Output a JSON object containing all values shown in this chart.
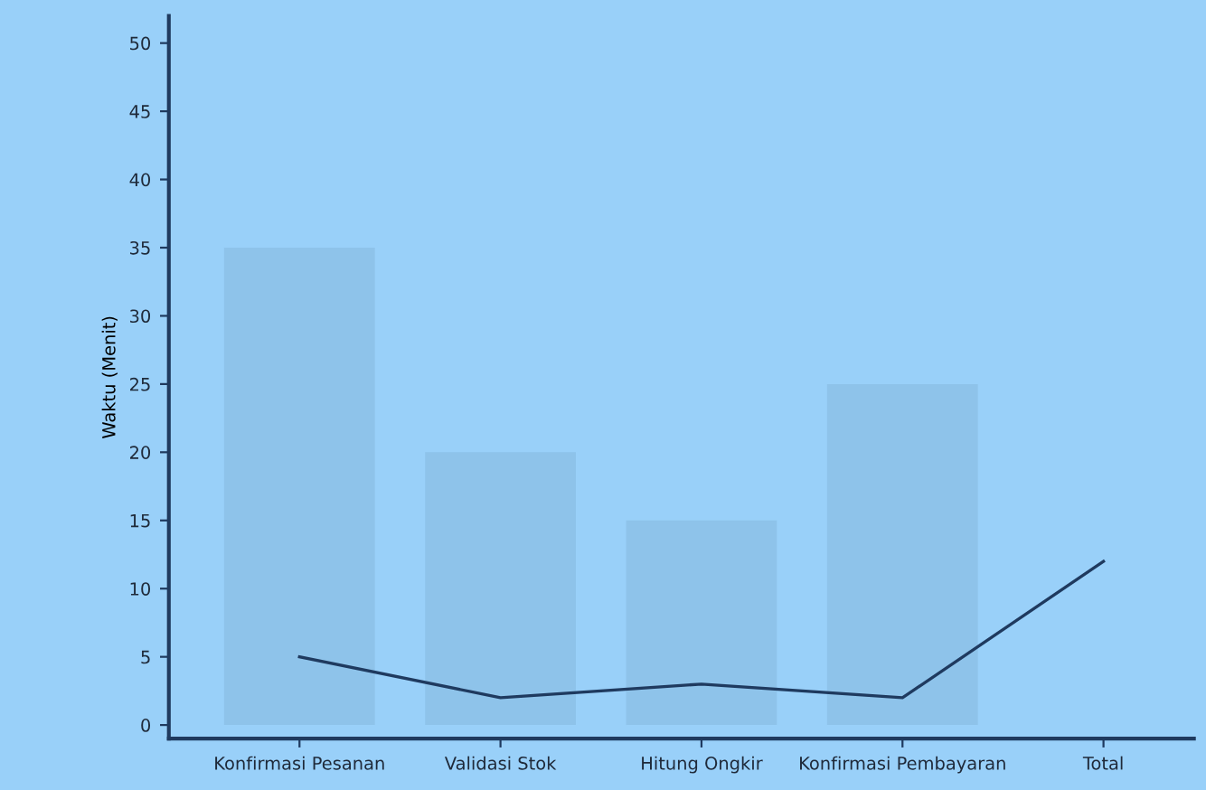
{
  "chart_data": {
    "type": "bar",
    "ylabel": "Waktu (Menit)",
    "categories": [
      "Konfirmasi Pesanan",
      "Validasi Stok",
      "Hitung Ongkir",
      "Konfirmasi Pembayaran",
      "Total"
    ],
    "series": [
      {
        "color": "#8ec3ea",
        "values": [
          35,
          20,
          15,
          25,
          null
        ]
      },
      {
        "type": "line",
        "color": "#1f3a5f",
        "values": [
          5,
          2,
          3,
          2,
          12
        ]
      }
    ],
    "ylim": [
      -1,
      52
    ],
    "yticks": [
      0,
      5,
      10,
      15,
      20,
      25,
      30,
      35,
      40,
      45,
      50
    ],
    "grid": false,
    "legend": false
  }
}
